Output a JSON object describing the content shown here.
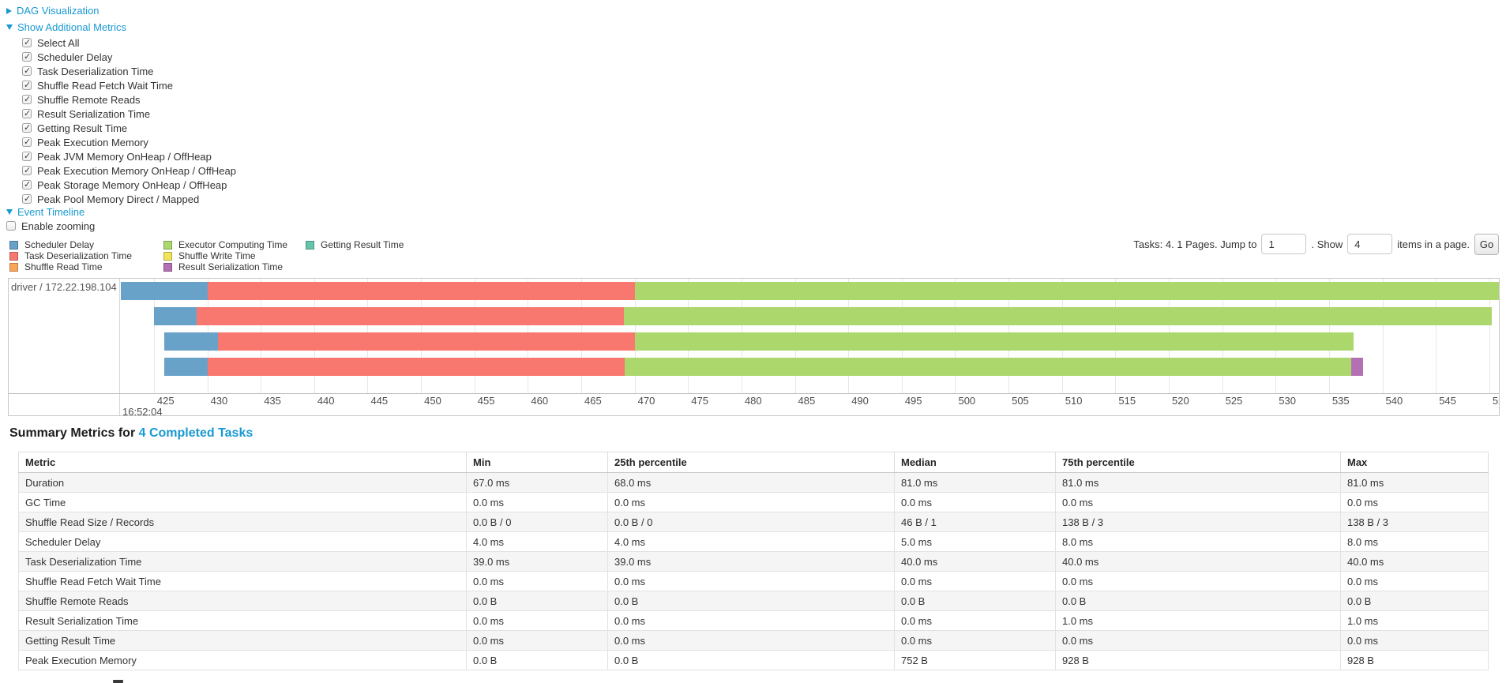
{
  "controls": {
    "dag_label": "DAG Visualization",
    "metrics_label": "Show Additional Metrics",
    "checkboxes": [
      {
        "label": "Select All",
        "checked": true
      },
      {
        "label": "Scheduler Delay",
        "checked": true
      },
      {
        "label": "Task Deserialization Time",
        "checked": true
      },
      {
        "label": "Shuffle Read Fetch Wait Time",
        "checked": true
      },
      {
        "label": "Shuffle Remote Reads",
        "checked": true
      },
      {
        "label": "Result Serialization Time",
        "checked": true
      },
      {
        "label": "Getting Result Time",
        "checked": true
      },
      {
        "label": "Peak Execution Memory",
        "checked": true
      },
      {
        "label": "Peak JVM Memory OnHeap / OffHeap",
        "checked": true
      },
      {
        "label": "Peak Execution Memory OnHeap / OffHeap",
        "checked": true
      },
      {
        "label": "Peak Storage Memory OnHeap / OffHeap",
        "checked": true
      },
      {
        "label": "Peak Pool Memory Direct / Mapped",
        "checked": true
      }
    ],
    "event_timeline_label": "Event Timeline",
    "enable_zooming": {
      "label": "Enable zooming",
      "checked": false
    }
  },
  "pagination": {
    "prefix": "Tasks: 4. 1 Pages. Jump to",
    "jump_value": "1",
    "mid": ". Show",
    "show_value": "4",
    "suffix": "items in a page.",
    "go_label": "Go"
  },
  "legend": {
    "columns": [
      [
        {
          "key": "scheduler_delay",
          "label": "Scheduler Delay"
        },
        {
          "key": "task_deserialization",
          "label": "Task Deserialization Time"
        },
        {
          "key": "shuffle_read",
          "label": "Shuffle Read Time"
        }
      ],
      [
        {
          "key": "executor_computing",
          "label": "Executor Computing Time"
        },
        {
          "key": "shuffle_write",
          "label": "Shuffle Write Time"
        },
        {
          "key": "result_serialization",
          "label": "Result Serialization Time"
        }
      ],
      [
        {
          "key": "getting_result",
          "label": "Getting Result Time"
        }
      ]
    ]
  },
  "chart_data": {
    "type": "timeline",
    "group_label": "driver / 172.22.198.104",
    "x_axis": {
      "min": 421.9,
      "max": 550.9,
      "tick_start": 425,
      "tick_end": 550,
      "tick_step": 5,
      "start_time_label": "16:52:04"
    },
    "colors": {
      "scheduler_delay": "#69A2C8",
      "task_deserialization": "#F8786F",
      "shuffle_read": "#FAA65A",
      "executor_computing": "#ABD76C",
      "shuffle_write": "#F2E35A",
      "result_serialization": "#B371B3",
      "getting_result": "#65C5AB"
    },
    "tasks": [
      {
        "segments": [
          {
            "type": "scheduler_delay",
            "start": 421.9,
            "end": 430.0
          },
          {
            "type": "task_deserialization",
            "start": 430.0,
            "end": 470.0
          },
          {
            "type": "executor_computing",
            "start": 470.0,
            "end": 551.0
          }
        ]
      },
      {
        "segments": [
          {
            "type": "scheduler_delay",
            "start": 425.0,
            "end": 429.0
          },
          {
            "type": "task_deserialization",
            "start": 429.0,
            "end": 469.0
          },
          {
            "type": "executor_computing",
            "start": 469.0,
            "end": 550.2
          }
        ]
      },
      {
        "segments": [
          {
            "type": "scheduler_delay",
            "start": 426.0,
            "end": 431.0
          },
          {
            "type": "task_deserialization",
            "start": 431.0,
            "end": 470.0
          },
          {
            "type": "executor_computing",
            "start": 470.0,
            "end": 537.3
          }
        ]
      },
      {
        "segments": [
          {
            "type": "scheduler_delay",
            "start": 426.0,
            "end": 430.0
          },
          {
            "type": "task_deserialization",
            "start": 430.0,
            "end": 469.1
          },
          {
            "type": "executor_computing",
            "start": 469.1,
            "end": 537.1
          },
          {
            "type": "result_serialization",
            "start": 537.1,
            "end": 538.2
          }
        ]
      }
    ]
  },
  "summary": {
    "title_prefix": "Summary Metrics for ",
    "title_link": "4 Completed Tasks",
    "headers": [
      "Metric",
      "Min",
      "25th percentile",
      "Median",
      "75th percentile",
      "Max"
    ],
    "rows": [
      {
        "metric": "Duration",
        "values": [
          "67.0 ms",
          "68.0 ms",
          "81.0 ms",
          "81.0 ms",
          "81.0 ms"
        ]
      },
      {
        "metric": "GC Time",
        "values": [
          "0.0 ms",
          "0.0 ms",
          "0.0 ms",
          "0.0 ms",
          "0.0 ms"
        ]
      },
      {
        "metric": "Shuffle Read Size / Records",
        "values": [
          "0.0 B / 0",
          "0.0 B / 0",
          "46 B / 1",
          "138 B / 3",
          "138 B / 3"
        ]
      },
      {
        "metric": "Scheduler Delay",
        "values": [
          "4.0 ms",
          "4.0 ms",
          "5.0 ms",
          "8.0 ms",
          "8.0 ms"
        ]
      },
      {
        "metric": "Task Deserialization Time",
        "values": [
          "39.0 ms",
          "39.0 ms",
          "40.0 ms",
          "40.0 ms",
          "40.0 ms"
        ]
      },
      {
        "metric": "Shuffle Read Fetch Wait Time",
        "values": [
          "0.0 ms",
          "0.0 ms",
          "0.0 ms",
          "0.0 ms",
          "0.0 ms"
        ]
      },
      {
        "metric": "Shuffle Remote Reads",
        "values": [
          "0.0 B",
          "0.0 B",
          "0.0 B",
          "0.0 B",
          "0.0 B"
        ]
      },
      {
        "metric": "Result Serialization Time",
        "values": [
          "0.0 ms",
          "0.0 ms",
          "0.0 ms",
          "1.0 ms",
          "1.0 ms"
        ]
      },
      {
        "metric": "Getting Result Time",
        "values": [
          "0.0 ms",
          "0.0 ms",
          "0.0 ms",
          "0.0 ms",
          "0.0 ms"
        ]
      },
      {
        "metric": "Peak Execution Memory",
        "values": [
          "0.0 B",
          "0.0 B",
          "752 B",
          "928 B",
          "928 B"
        ]
      }
    ]
  }
}
